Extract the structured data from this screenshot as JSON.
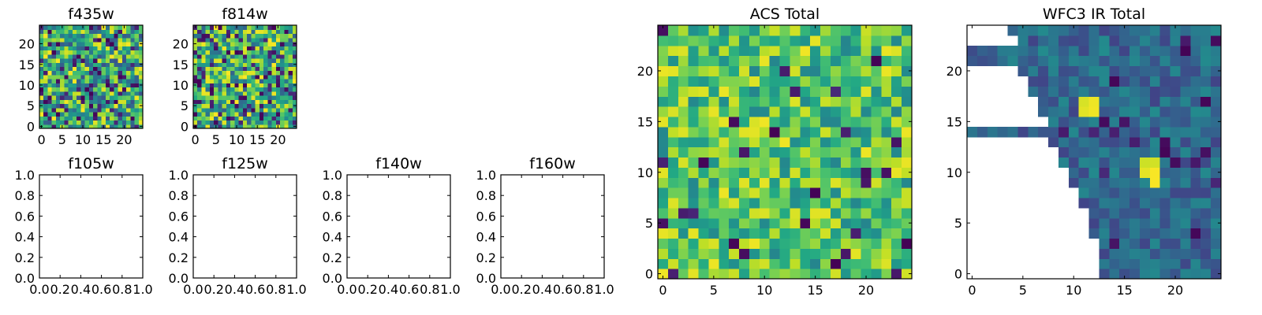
{
  "chart_data": [
    {
      "type": "heatmap",
      "title": "f435w",
      "xlim": [
        -0.5,
        24.5
      ],
      "ylim": [
        -0.5,
        24.5
      ],
      "xticks": [
        "0",
        "5",
        "10",
        "15",
        "20"
      ],
      "xtick_values": [
        0,
        5,
        10,
        15,
        20
      ],
      "yticks": [
        "0",
        "5",
        "10",
        "15",
        "20"
      ],
      "ytick_values": [
        0,
        5,
        10,
        15,
        20
      ],
      "grid": false,
      "colormap": "viridis",
      "seed": 11,
      "lo": 0.25,
      "hi": 1.0,
      "low_fraction": 0.12
    },
    {
      "type": "heatmap",
      "title": "f814w",
      "xlim": [
        -0.5,
        24.5
      ],
      "ylim": [
        -0.5,
        24.5
      ],
      "xticks": [
        "0",
        "5",
        "10",
        "15",
        "20"
      ],
      "xtick_values": [
        0,
        5,
        10,
        15,
        20
      ],
      "yticks": [
        "0",
        "5",
        "10",
        "15",
        "20"
      ],
      "ytick_values": [
        0,
        5,
        10,
        15,
        20
      ],
      "grid": false,
      "colormap": "viridis",
      "seed": 23,
      "lo": 0.3,
      "hi": 1.0,
      "low_fraction": 0.14
    },
    {
      "type": "empty",
      "title": "f105w",
      "xlim": [
        0,
        1
      ],
      "ylim": [
        0,
        1
      ],
      "xticks": [
        "0.0",
        "0.2",
        "0.4",
        "0.6",
        "0.8",
        "1.0"
      ],
      "xtick_values": [
        0,
        0.2,
        0.4,
        0.6,
        0.8,
        1.0
      ],
      "yticks": [
        "0.0",
        "0.2",
        "0.4",
        "0.6",
        "0.8",
        "1.0"
      ],
      "ytick_values": [
        0,
        0.2,
        0.4,
        0.6,
        0.8,
        1.0
      ]
    },
    {
      "type": "empty",
      "title": "f125w",
      "xlim": [
        0,
        1
      ],
      "ylim": [
        0,
        1
      ],
      "xticks": [
        "0.0",
        "0.2",
        "0.4",
        "0.6",
        "0.8",
        "1.0"
      ],
      "xtick_values": [
        0,
        0.2,
        0.4,
        0.6,
        0.8,
        1.0
      ],
      "yticks": [
        "0.0",
        "0.2",
        "0.4",
        "0.6",
        "0.8",
        "1.0"
      ],
      "ytick_values": [
        0,
        0.2,
        0.4,
        0.6,
        0.8,
        1.0
      ]
    },
    {
      "type": "empty",
      "title": "f140w",
      "xlim": [
        0,
        1
      ],
      "ylim": [
        0,
        1
      ],
      "xticks": [
        "0.0",
        "0.2",
        "0.4",
        "0.6",
        "0.8",
        "1.0"
      ],
      "xtick_values": [
        0,
        0.2,
        0.4,
        0.6,
        0.8,
        1.0
      ],
      "yticks": [
        "0.0",
        "0.2",
        "0.4",
        "0.6",
        "0.8",
        "1.0"
      ],
      "ytick_values": [
        0,
        0.2,
        0.4,
        0.6,
        0.8,
        1.0
      ]
    },
    {
      "type": "empty",
      "title": "f160w",
      "xlim": [
        0,
        1
      ],
      "ylim": [
        0,
        1
      ],
      "xticks": [
        "0.0",
        "0.2",
        "0.4",
        "0.6",
        "0.8",
        "1.0"
      ],
      "xtick_values": [
        0,
        0.2,
        0.4,
        0.6,
        0.8,
        1.0
      ],
      "yticks": [
        "0.0",
        "0.2",
        "0.4",
        "0.6",
        "0.8",
        "1.0"
      ],
      "ytick_values": [
        0,
        0.2,
        0.4,
        0.6,
        0.8,
        1.0
      ]
    },
    {
      "type": "heatmap",
      "title": "ACS Total",
      "xlim": [
        -0.5,
        24.5
      ],
      "ylim": [
        -0.5,
        24.5
      ],
      "xticks": [
        "0",
        "5",
        "10",
        "15",
        "20"
      ],
      "xtick_values": [
        0,
        5,
        10,
        15,
        20
      ],
      "yticks": [
        "0",
        "5",
        "10",
        "15",
        "20"
      ],
      "ytick_values": [
        0,
        5,
        10,
        15,
        20
      ],
      "grid": false,
      "colormap": "viridis",
      "seed": 37,
      "lo": 0.45,
      "hi": 0.98,
      "low_fraction": 0.04
    },
    {
      "type": "heatmap",
      "title": "WFC3 IR Total",
      "xlim": [
        -0.5,
        24.5
      ],
      "ylim": [
        -0.5,
        24.5
      ],
      "xticks": [
        "0",
        "5",
        "10",
        "15",
        "20"
      ],
      "xtick_values": [
        0,
        5,
        10,
        15,
        20
      ],
      "yticks": [
        "0",
        "5",
        "10",
        "15",
        "20"
      ],
      "ytick_values": [
        0,
        5,
        10,
        15,
        20
      ],
      "grid": false,
      "colormap": "viridis",
      "seed": 53,
      "lo": 0.2,
      "hi": 0.48,
      "low_fraction": 0.04,
      "mask_edge": [
        [
          24,
          3.5
        ],
        [
          23,
          4.5
        ],
        [
          20,
          4.5
        ],
        [
          19,
          5.5
        ],
        [
          18,
          5.5
        ],
        [
          17,
          6.5
        ],
        [
          16,
          6.5
        ],
        [
          15,
          7.5
        ],
        [
          13,
          7.5
        ],
        [
          12,
          8.5
        ],
        [
          11,
          8.5
        ],
        [
          10,
          9.5
        ],
        [
          9,
          9.5
        ],
        [
          8,
          10.5
        ],
        [
          7,
          10.5
        ],
        [
          6,
          11.5
        ],
        [
          5,
          11.5
        ],
        [
          4,
          11.5
        ],
        [
          3,
          12.5
        ],
        [
          2,
          12.5
        ],
        [
          1,
          12.5
        ],
        [
          0,
          12.5
        ]
      ],
      "bright_cells": [
        [
          11,
          16
        ],
        [
          11,
          17
        ],
        [
          12,
          16
        ],
        [
          12,
          17
        ],
        [
          17,
          10
        ],
        [
          17,
          11
        ],
        [
          18,
          10
        ],
        [
          18,
          11
        ],
        [
          18,
          9
        ]
      ]
    }
  ]
}
